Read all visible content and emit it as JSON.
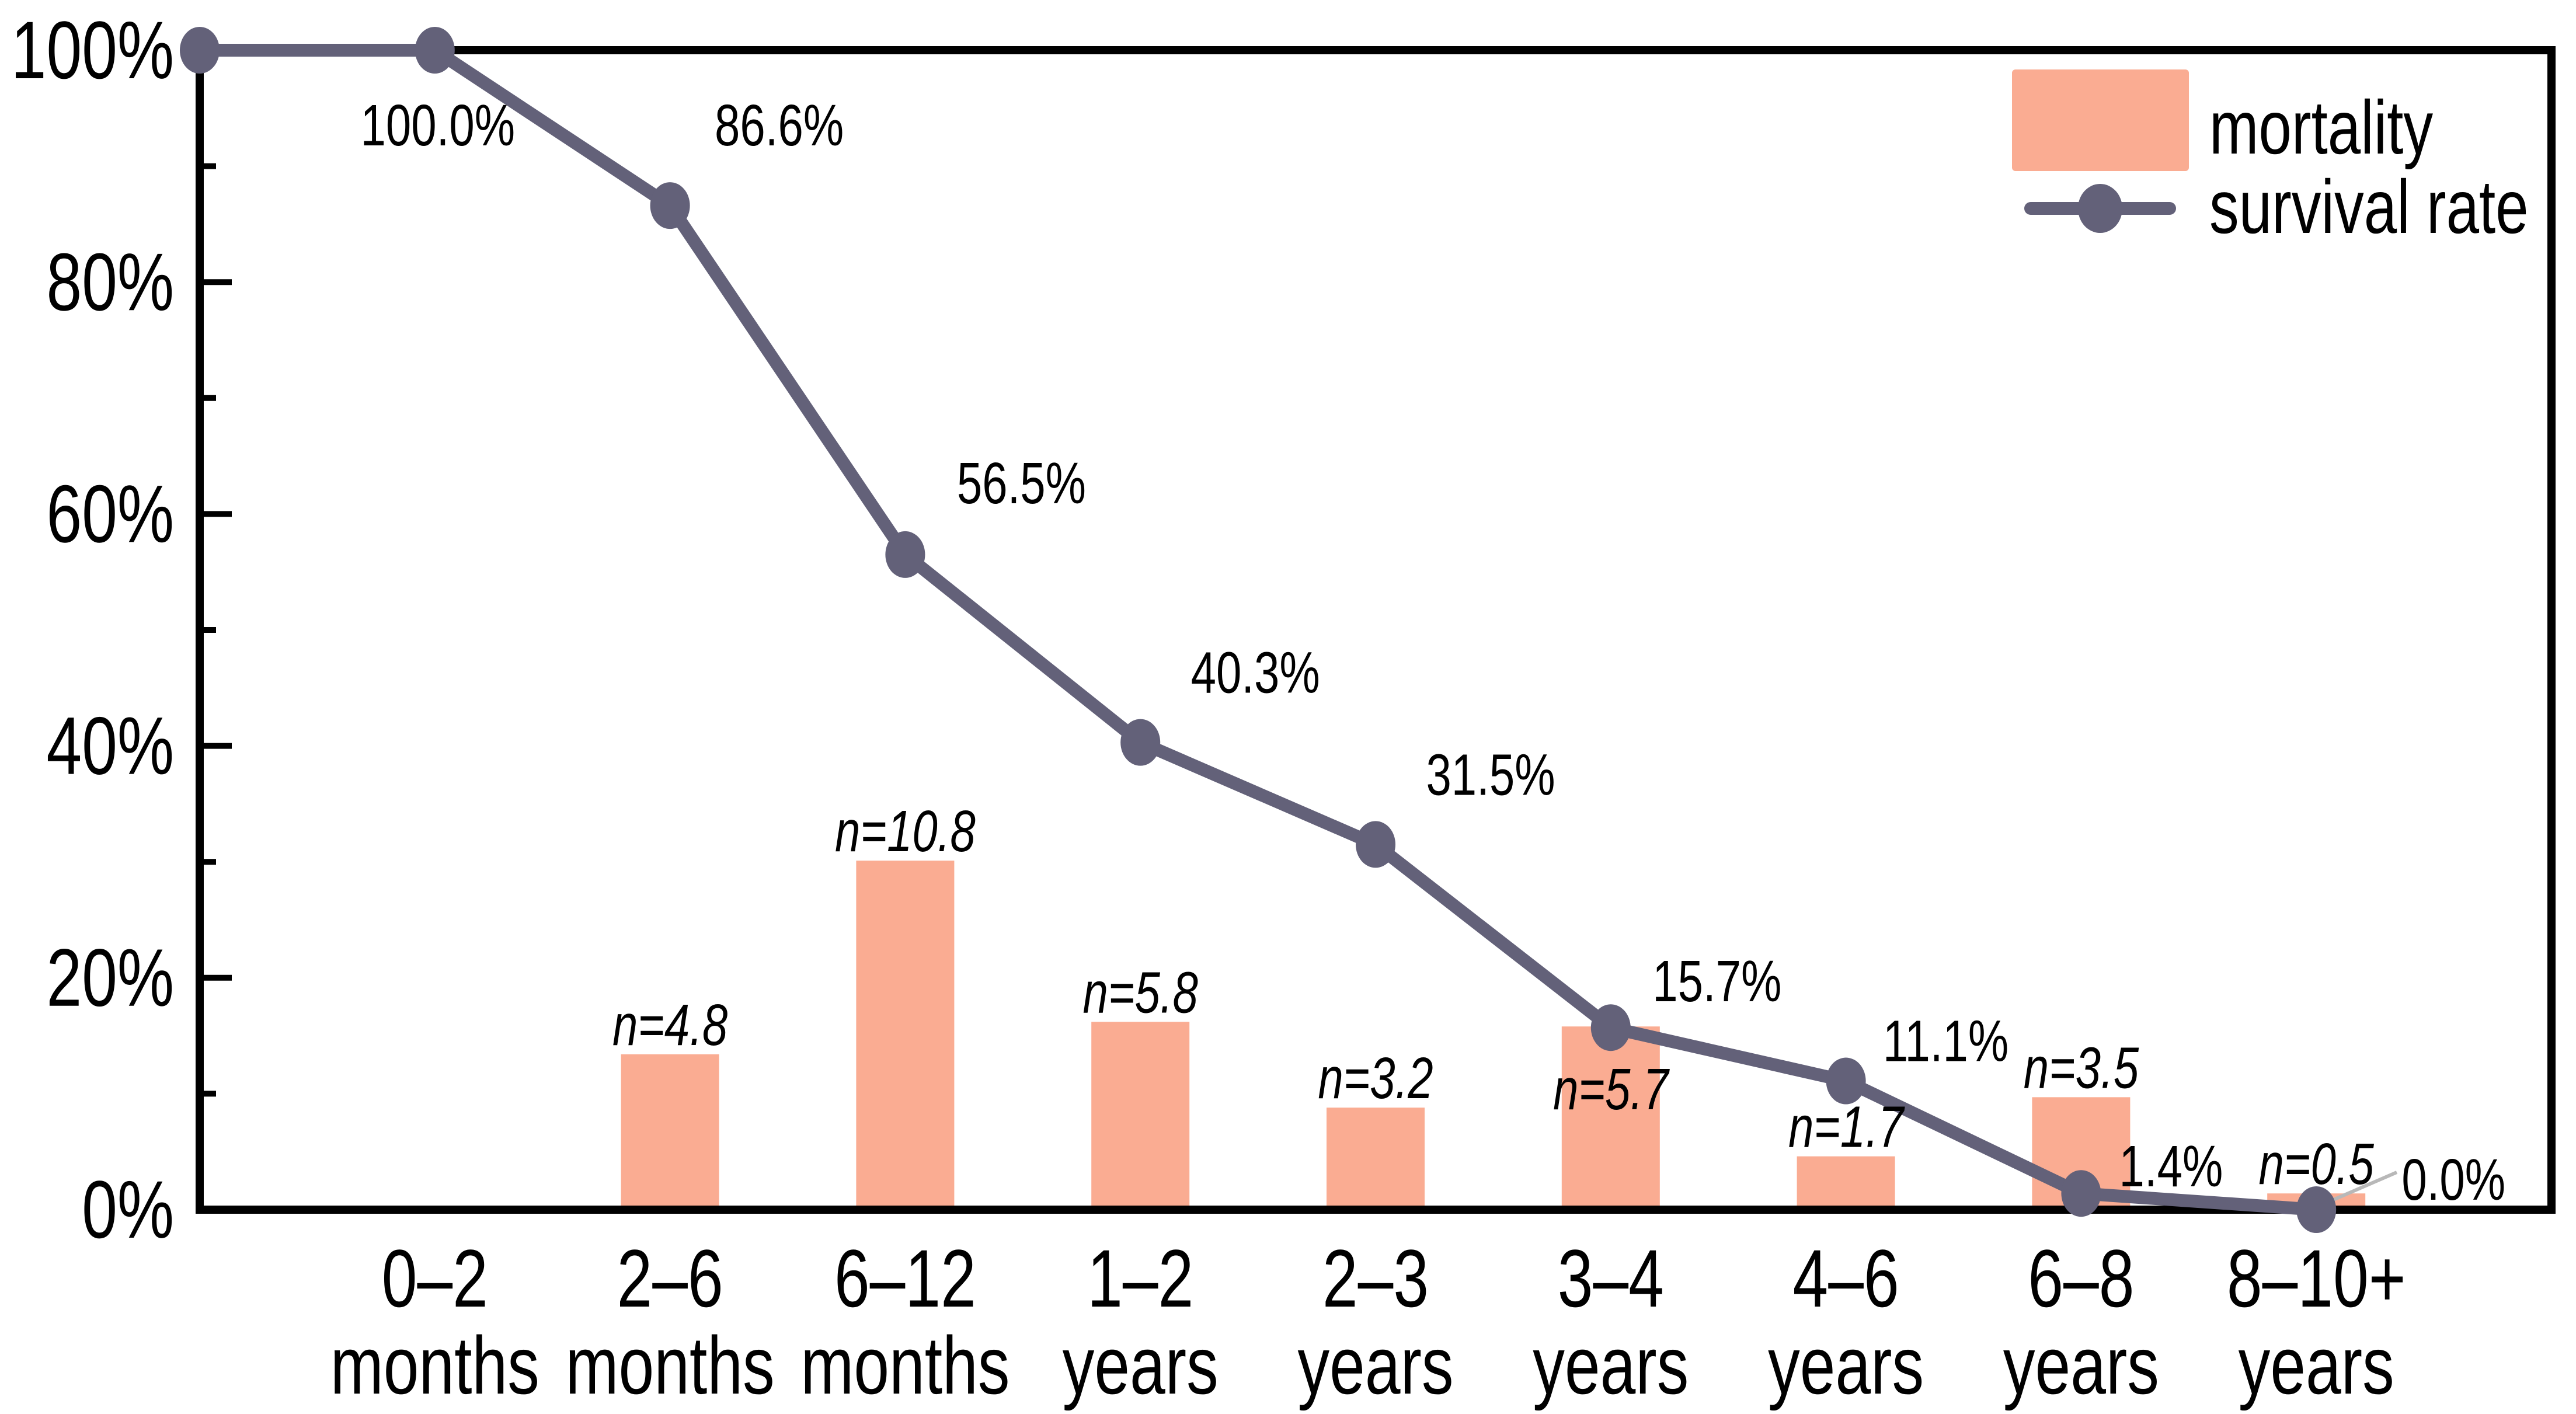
{
  "figure": {
    "background": "#ffffff",
    "text_color": "#000000",
    "axis_color": "#000000"
  },
  "legend": {
    "position": "top-right",
    "items": [
      {
        "label": "mortality",
        "marker": "square",
        "color": "#FAAC92"
      },
      {
        "label": "survival rate",
        "marker": "line-dot",
        "color": "#636179"
      }
    ]
  },
  "chart_data": {
    "type": "bar",
    "subtype": "bar+line combo",
    "title": "",
    "xlabel": "",
    "ylabel": "",
    "categories": [
      [
        "0–2",
        "months"
      ],
      [
        "2–6",
        "months"
      ],
      [
        "6–12",
        "months"
      ],
      [
        "1–2",
        "years"
      ],
      [
        "2–3",
        "years"
      ],
      [
        "3–4",
        "years"
      ],
      [
        "4–6",
        "years"
      ],
      [
        "6–8",
        "years"
      ],
      [
        "8–10+",
        "years"
      ]
    ],
    "y_axis": {
      "tick_labels": [
        "0%",
        "20%",
        "40%",
        "60%",
        "80%",
        "100%"
      ],
      "ylim": [
        0,
        100
      ],
      "major_step": 20,
      "minor_step": 10,
      "grid": false
    },
    "series": [
      {
        "name": "mortality",
        "type": "bar",
        "color": "#FAAC92",
        "bar_heights_pct": [
          0,
          13.4,
          30.1,
          16.2,
          8.8,
          15.8,
          4.6,
          9.7,
          1.4
        ],
        "bar_labels": [
          "",
          "n=4.8",
          "n=10.8",
          "n=5.8",
          "n=3.2",
          "n=5.7",
          "n=1.7",
          "n=3.5",
          "n=0.5"
        ]
      },
      {
        "name": "survival rate",
        "type": "line",
        "color": "#636179",
        "values_pct": [
          100.0,
          86.6,
          56.5,
          40.3,
          31.5,
          15.7,
          11.1,
          1.4,
          0.0
        ],
        "point_labels": [
          "100.0%",
          "86.6%",
          "56.5%",
          "40.3%",
          "31.5%",
          "15.7%",
          "11.1%",
          "1.4%",
          "0.0%"
        ],
        "starts_at_y_axis": true,
        "leader_line_on_last_label": true,
        "leader_line_color": "#b8b8b8"
      }
    ]
  }
}
